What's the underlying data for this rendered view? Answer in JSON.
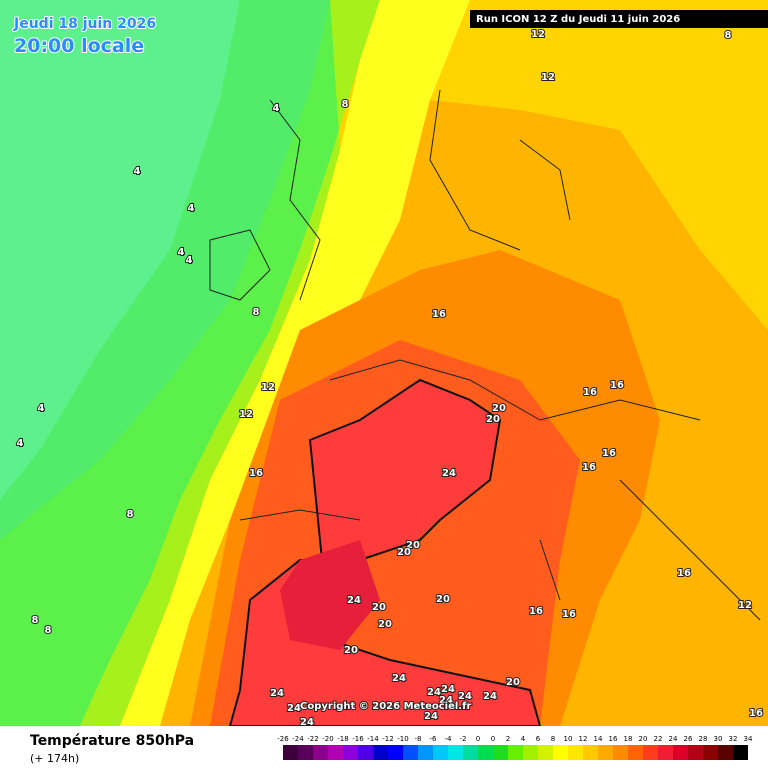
{
  "header": {
    "date": "Jeudi 18 juin 2026",
    "time": "20:00 locale",
    "run": "Run ICON 12 Z du Jeudi 11 juin 2026"
  },
  "map": {
    "contour_labels": [
      12,
      12,
      8,
      8,
      4,
      4,
      4,
      4,
      4,
      8,
      16,
      12,
      16,
      16,
      12,
      4,
      4,
      20,
      20,
      16,
      16,
      16,
      24,
      8,
      20,
      20,
      24,
      20,
      20,
      16,
      16,
      20,
      8,
      8,
      20,
      16,
      12,
      24,
      20,
      24,
      24,
      24,
      24,
      24,
      24,
      24,
      24,
      24,
      16
    ],
    "copyright": "Copyright © 2026 Meteociel.fr"
  },
  "footer": {
    "title": "Température 850hPa",
    "subtitle": "(+ 174h)"
  },
  "legend": {
    "labels": [
      -26,
      -24,
      -22,
      -20,
      -18,
      -16,
      -14,
      -12,
      -10,
      -8,
      -6,
      -4,
      -2,
      0,
      0,
      2,
      4,
      6,
      8,
      10,
      12,
      14,
      16,
      18,
      20,
      22,
      24,
      26,
      28,
      30,
      32,
      34
    ],
    "colors": [
      "#3c003c",
      "#5a005a",
      "#8c008c",
      "#b400b4",
      "#8c00dc",
      "#5000e6",
      "#0000c8",
      "#0000ff",
      "#0050ff",
      "#0096ff",
      "#00c8ff",
      "#00e6e6",
      "#00dca0",
      "#00dc50",
      "#1edc1e",
      "#64f000",
      "#a0f000",
      "#d2f000",
      "#ffff00",
      "#ffe600",
      "#ffc800",
      "#ffaa00",
      "#ff8c00",
      "#ff6400",
      "#ff3c1e",
      "#f01e32",
      "#dc0028",
      "#b40014",
      "#8c0000",
      "#5a0000",
      "#000000"
    ]
  }
}
